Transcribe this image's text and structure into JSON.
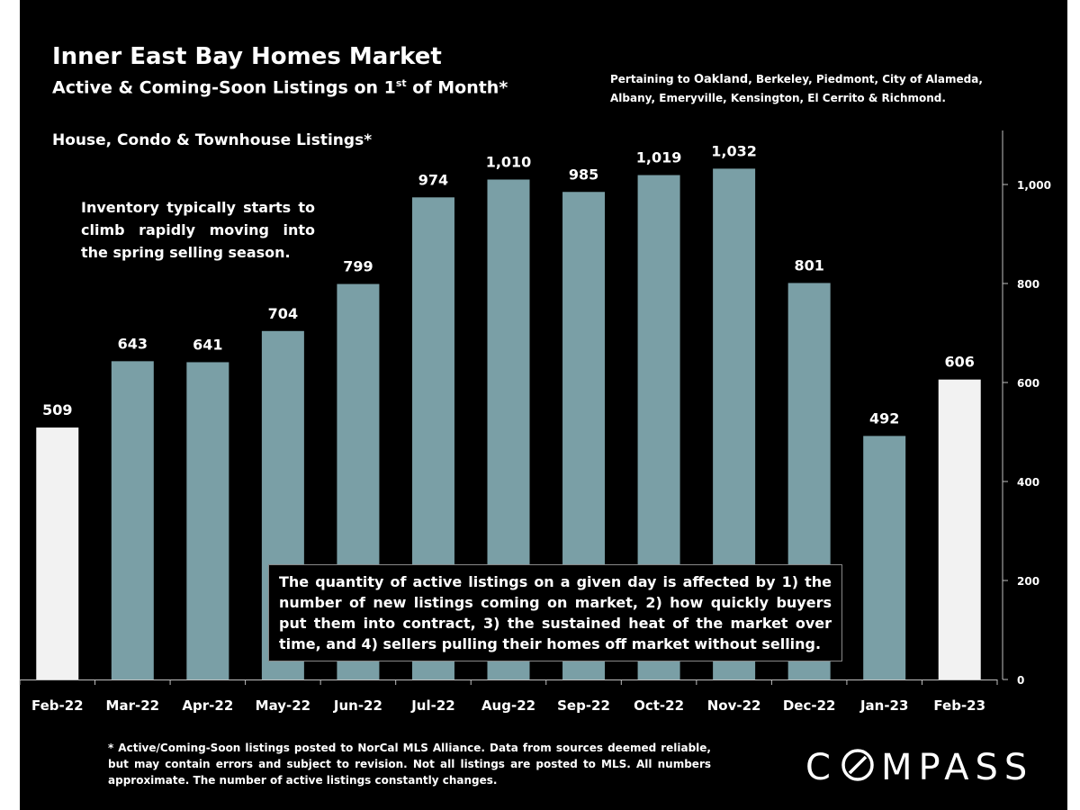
{
  "header": {
    "title": "Inner East Bay Homes Market",
    "subtitle_main": "Active & Coming-Soon Listings on 1",
    "subtitle_sup": "st",
    "subtitle_end": " of Month*",
    "pertaining_prefix": "Pertaining to ",
    "pertaining_city": "Oakland",
    "pertaining_rest": ", Berkeley, Piedmont, City of Alameda, Albany, Emeryville, Kensington, El Cerrito & Richmond."
  },
  "annotations": {
    "series_label": "House, Condo & Townhouse Listings*",
    "left_note": "Inventory typically starts to climb rapidly moving into the spring selling season.",
    "callout": "The quantity of active listings on a given day is affected by 1) the number of new listings coming on market, 2) how quickly buyers put them into contract, 3) the sustained heat of the market over time, and 4) sellers pulling their homes off market without selling."
  },
  "footnote": "* Active/Coming-Soon listings posted to NorCal MLS Alliance. Data from sources deemed reliable, but may contain errors and subject to revision. Not all listings are posted to MLS. All numbers approximate. The number of active listings constantly changes.",
  "logo": {
    "text": "COMPASS"
  },
  "colors": {
    "background": "#000000",
    "bar": "#7a9fa6",
    "bar_highlight": "#f2f2f2",
    "text": "#ffffff",
    "axis": "#bfbfbf"
  },
  "chart_data": {
    "type": "bar",
    "categories": [
      "Feb-22",
      "Mar-22",
      "Apr-22",
      "May-22",
      "Jun-22",
      "Jul-22",
      "Aug-22",
      "Sep-22",
      "Oct-22",
      "Nov-22",
      "Dec-22",
      "Jan-23",
      "Feb-23"
    ],
    "values": [
      509,
      643,
      641,
      704,
      799,
      974,
      1010,
      985,
      1019,
      1032,
      801,
      492,
      606
    ],
    "value_labels": [
      "509",
      "643",
      "641",
      "704",
      "799",
      "974",
      "1,010",
      "985",
      "1,019",
      "1,032",
      "801",
      "492",
      "606"
    ],
    "highlight": [
      true,
      false,
      false,
      false,
      false,
      false,
      false,
      false,
      false,
      false,
      false,
      false,
      true
    ],
    "ylim": [
      0,
      1100
    ],
    "yticks": [
      0,
      200,
      400,
      600,
      800,
      1000
    ],
    "ytick_labels": [
      "0",
      "200",
      "400",
      "600",
      "800",
      "1,000"
    ],
    "y_axis_side": "right",
    "grid": false,
    "show_data_labels": true
  }
}
